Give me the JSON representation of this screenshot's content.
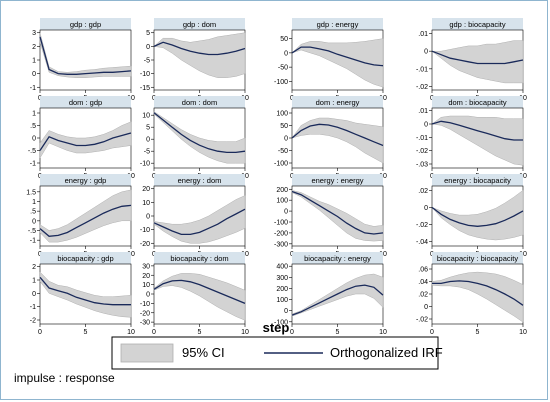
{
  "note": "impulse : response",
  "x_title": "step",
  "legend": {
    "ci_label": "95% CI",
    "irf_label": "Orthogonalized IRF"
  },
  "colors": {
    "panel_header": "#d7e3ec",
    "band": "#d3d3d3",
    "band_edge": "#b0b0b0",
    "line": "#1a2a5a",
    "frame": "#8fb5cf"
  },
  "x_ticks": [
    0,
    5,
    10
  ],
  "chart_data": [
    {
      "type": "area",
      "title": "gdp : gdp",
      "xlim": [
        0,
        10
      ],
      "ylim": [
        -1.2,
        3.2
      ],
      "yticks": [
        -1,
        0,
        1,
        2,
        3
      ],
      "ytick_labels": [
        "-1",
        "0",
        "1",
        "2",
        "3"
      ],
      "x": [
        0,
        1,
        2,
        3,
        4,
        5,
        6,
        7,
        8,
        9,
        10
      ],
      "irf": [
        2.7,
        0.3,
        0.0,
        -0.05,
        -0.05,
        0.0,
        0.05,
        0.1,
        0.1,
        0.15,
        0.2
      ],
      "lower": [
        2.3,
        0.1,
        -0.15,
        -0.25,
        -0.3,
        -0.3,
        -0.25,
        -0.2,
        -0.2,
        -0.2,
        -0.2
      ],
      "upper": [
        3.0,
        0.5,
        0.15,
        0.1,
        0.15,
        0.25,
        0.3,
        0.4,
        0.45,
        0.5,
        0.55
      ]
    },
    {
      "type": "area",
      "title": "gdp : dom",
      "xlim": [
        0,
        10
      ],
      "ylim": [
        -16,
        6
      ],
      "yticks": [
        -15,
        -10,
        -5,
        0,
        5
      ],
      "ytick_labels": [
        "-15",
        "-10",
        "-5",
        "0",
        "5"
      ],
      "x": [
        0,
        1,
        2,
        3,
        4,
        5,
        6,
        7,
        8,
        9,
        10
      ],
      "irf": [
        0,
        1.5,
        0.5,
        -0.8,
        -1.8,
        -2.5,
        -3,
        -3,
        -2.5,
        -1.8,
        -0.8
      ],
      "lower": [
        0,
        -0.5,
        -2.5,
        -5,
        -7,
        -9,
        -10.5,
        -11.5,
        -11.5,
        -11,
        -10
      ],
      "upper": [
        0,
        3,
        3,
        2,
        1.5,
        2,
        2.5,
        3.5,
        4,
        4.5,
        5
      ]
    },
    {
      "type": "area",
      "title": "gdp : energy",
      "xlim": [
        0,
        10
      ],
      "ylim": [
        -130,
        80
      ],
      "yticks": [
        -100,
        -50,
        0,
        50
      ],
      "ytick_labels": [
        "-100",
        "-50",
        "0",
        "50"
      ],
      "x": [
        0,
        1,
        2,
        3,
        4,
        5,
        6,
        7,
        8,
        9,
        10
      ],
      "irf": [
        0,
        20,
        20,
        14,
        7,
        -5,
        -15,
        -25,
        -35,
        -42,
        -45
      ],
      "lower": [
        0,
        10,
        0,
        -10,
        -25,
        -40,
        -55,
        -75,
        -95,
        -110,
        -120
      ],
      "upper": [
        0,
        30,
        40,
        40,
        35,
        35,
        35,
        37,
        40,
        45,
        50
      ]
    },
    {
      "type": "area",
      "title": "gdp : biocapacity",
      "xlim": [
        0,
        10
      ],
      "ylim": [
        -0.022,
        0.012
      ],
      "yticks": [
        -0.02,
        -0.01,
        0,
        0.01
      ],
      "ytick_labels": [
        "-.02",
        "-.01",
        "0",
        ".01"
      ],
      "x": [
        0,
        1,
        2,
        3,
        4,
        5,
        6,
        7,
        8,
        9,
        10
      ],
      "irf": [
        0,
        -0.002,
        -0.004,
        -0.005,
        -0.006,
        -0.007,
        -0.007,
        -0.007,
        -0.007,
        -0.006,
        -0.005
      ],
      "lower": [
        0,
        -0.004,
        -0.008,
        -0.011,
        -0.013,
        -0.015,
        -0.016,
        -0.017,
        -0.018,
        -0.018,
        -0.018
      ],
      "upper": [
        0,
        0,
        0.001,
        0.002,
        0.003,
        0.003,
        0.004,
        0.004,
        0.005,
        0.006,
        0.006
      ]
    },
    {
      "type": "area",
      "title": "dom : gdp",
      "xlim": [
        0,
        10
      ],
      "ylim": [
        -1.2,
        1.2
      ],
      "yticks": [
        -1,
        -0.5,
        0,
        0.5,
        1
      ],
      "ytick_labels": [
        "-1",
        "-.5",
        "0",
        ".5",
        "1"
      ],
      "x": [
        0,
        1,
        2,
        3,
        4,
        5,
        6,
        7,
        8,
        9,
        10
      ],
      "irf": [
        -0.5,
        0.05,
        -0.1,
        -0.2,
        -0.3,
        -0.3,
        -0.25,
        -0.15,
        0.0,
        0.1,
        0.2
      ],
      "lower": [
        -0.8,
        -0.2,
        -0.35,
        -0.5,
        -0.6,
        -0.6,
        -0.55,
        -0.5,
        -0.4,
        -0.35,
        -0.3
      ],
      "upper": [
        -0.2,
        0.3,
        0.15,
        0.05,
        0.0,
        0.0,
        0.05,
        0.15,
        0.3,
        0.5,
        0.65
      ]
    },
    {
      "type": "area",
      "title": "dom : dom",
      "xlim": [
        0,
        10
      ],
      "ylim": [
        -12,
        13
      ],
      "yticks": [
        -10,
        -5,
        0,
        5,
        10
      ],
      "ytick_labels": [
        "-10",
        "-5",
        "0",
        "5",
        "10"
      ],
      "x": [
        0,
        1,
        2,
        3,
        4,
        5,
        6,
        7,
        8,
        9,
        10
      ],
      "irf": [
        11,
        8,
        5,
        2,
        -0.5,
        -2.5,
        -4,
        -5,
        -5.5,
        -5.5,
        -5
      ],
      "lower": [
        10.5,
        7,
        3.5,
        0,
        -3,
        -5.5,
        -7.5,
        -9,
        -10,
        -10,
        -10
      ],
      "upper": [
        11.5,
        9,
        6.5,
        4,
        2,
        0.5,
        -0.5,
        -1,
        -1,
        -1,
        0.5
      ]
    },
    {
      "type": "area",
      "title": "dom : energy",
      "xlim": [
        0,
        10
      ],
      "ylim": [
        -120,
        120
      ],
      "yticks": [
        -100,
        -50,
        0,
        50,
        100
      ],
      "ytick_labels": [
        "-100",
        "-50",
        "0",
        "50",
        "100"
      ],
      "x": [
        0,
        1,
        2,
        3,
        4,
        5,
        6,
        7,
        8,
        9,
        10
      ],
      "irf": [
        0,
        30,
        48,
        55,
        52,
        43,
        30,
        15,
        0,
        -15,
        -30
      ],
      "lower": [
        0,
        10,
        15,
        15,
        10,
        0,
        -15,
        -35,
        -60,
        -80,
        -100
      ],
      "upper": [
        0,
        50,
        70,
        80,
        80,
        75,
        70,
        60,
        55,
        50,
        45
      ]
    },
    {
      "type": "area",
      "title": "dom : biocapacity",
      "xlim": [
        0,
        10
      ],
      "ylim": [
        -0.033,
        0.012
      ],
      "yticks": [
        -0.03,
        -0.02,
        -0.01,
        0,
        0.01
      ],
      "ytick_labels": [
        "-.03",
        "-.02",
        "-.01",
        "0",
        ".01"
      ],
      "x": [
        0,
        1,
        2,
        3,
        4,
        5,
        6,
        7,
        8,
        9,
        10
      ],
      "irf": [
        0,
        0.002,
        0.001,
        -0.001,
        -0.003,
        -0.005,
        -0.007,
        -0.009,
        -0.011,
        -0.012,
        -0.012
      ],
      "lower": [
        0,
        -0.001,
        -0.004,
        -0.008,
        -0.012,
        -0.016,
        -0.02,
        -0.024,
        -0.027,
        -0.03,
        -0.031
      ],
      "upper": [
        0,
        0.005,
        0.006,
        0.006,
        0.006,
        0.005,
        0.005,
        0.005,
        0.004,
        0.004,
        0.004
      ]
    },
    {
      "type": "area",
      "title": "energy : gdp",
      "xlim": [
        0,
        10
      ],
      "ylim": [
        -1.3,
        1.8
      ],
      "yticks": [
        -1,
        -0.5,
        0,
        0.5,
        1,
        1.5
      ],
      "ytick_labels": [
        "-1",
        "-.5",
        "0",
        ".5",
        "1",
        "1.5"
      ],
      "x": [
        0,
        1,
        2,
        3,
        4,
        5,
        6,
        7,
        8,
        9,
        10
      ],
      "irf": [
        -0.4,
        -0.8,
        -0.75,
        -0.6,
        -0.35,
        -0.1,
        0.15,
        0.4,
        0.6,
        0.75,
        0.8
      ],
      "lower": [
        -0.6,
        -1.1,
        -1.1,
        -1.0,
        -0.85,
        -0.65,
        -0.45,
        -0.25,
        -0.1,
        0.0,
        0.0
      ],
      "upper": [
        -0.2,
        -0.5,
        -0.4,
        -0.2,
        0.1,
        0.4,
        0.7,
        1.0,
        1.3,
        1.5,
        1.6
      ]
    },
    {
      "type": "area",
      "title": "energy : dom",
      "xlim": [
        0,
        10
      ],
      "ylim": [
        -22,
        22
      ],
      "yticks": [
        -20,
        -10,
        0,
        10,
        20
      ],
      "ytick_labels": [
        "-20",
        "-10",
        "0",
        "10",
        "20"
      ],
      "x": [
        0,
        1,
        2,
        3,
        4,
        5,
        6,
        7,
        8,
        9,
        10
      ],
      "irf": [
        -5,
        -8,
        -11,
        -13.5,
        -13.5,
        -12,
        -9,
        -6,
        -2,
        1.5,
        5
      ],
      "lower": [
        -6,
        -11,
        -15,
        -18.5,
        -20,
        -20,
        -19,
        -17,
        -14.5,
        -12,
        -9
      ],
      "upper": [
        -4,
        -5,
        -6,
        -6,
        -5,
        -3,
        0,
        4,
        8,
        12,
        15
      ]
    },
    {
      "type": "area",
      "title": "energy : energy",
      "xlim": [
        0,
        10
      ],
      "ylim": [
        -320,
        230
      ],
      "yticks": [
        -300,
        -200,
        -100,
        0,
        100,
        200
      ],
      "ytick_labels": [
        "-300",
        "-200",
        "-100",
        "0",
        "100",
        "200"
      ],
      "x": [
        0,
        1,
        2,
        3,
        4,
        5,
        6,
        7,
        8,
        9,
        10
      ],
      "irf": [
        180,
        150,
        100,
        50,
        0,
        -50,
        -110,
        -160,
        -200,
        -210,
        -200
      ],
      "lower": [
        170,
        130,
        70,
        10,
        -60,
        -130,
        -200,
        -250,
        -270,
        -275,
        -270
      ],
      "upper": [
        190,
        170,
        130,
        90,
        60,
        20,
        -20,
        -70,
        -120,
        -140,
        -130
      ]
    },
    {
      "type": "area",
      "title": "energy : biocapacity",
      "xlim": [
        0,
        10
      ],
      "ylim": [
        -0.045,
        0.025
      ],
      "yticks": [
        -0.04,
        -0.02,
        0,
        0.02
      ],
      "ytick_labels": [
        "-.04",
        "-.02",
        "0",
        ".02"
      ],
      "x": [
        0,
        1,
        2,
        3,
        4,
        5,
        6,
        7,
        8,
        9,
        10
      ],
      "irf": [
        0,
        -0.008,
        -0.014,
        -0.018,
        -0.021,
        -0.022,
        -0.021,
        -0.019,
        -0.015,
        -0.01,
        -0.004
      ],
      "lower": [
        0,
        -0.012,
        -0.02,
        -0.027,
        -0.032,
        -0.035,
        -0.037,
        -0.038,
        -0.037,
        -0.035,
        -0.032
      ],
      "upper": [
        0,
        -0.004,
        -0.007,
        -0.009,
        -0.009,
        -0.008,
        -0.005,
        -0.001,
        0.005,
        0.012,
        0.02
      ]
    },
    {
      "type": "area",
      "title": "biocapacity : gdp",
      "xlim": [
        0,
        10
      ],
      "ylim": [
        -2.3,
        2.2
      ],
      "yticks": [
        -2,
        -1,
        0,
        1,
        2
      ],
      "ytick_labels": [
        "-2",
        "-1",
        "0",
        "1",
        "2"
      ],
      "x": [
        0,
        1,
        2,
        3,
        4,
        5,
        6,
        7,
        8,
        9,
        10
      ],
      "irf": [
        1.2,
        0.4,
        0.2,
        0.0,
        -0.3,
        -0.5,
        -0.7,
        -0.8,
        -0.85,
        -0.85,
        -0.85
      ],
      "lower": [
        0.9,
        0.0,
        -0.25,
        -0.5,
        -0.8,
        -1.05,
        -1.3,
        -1.5,
        -1.65,
        -1.75,
        -1.8
      ],
      "upper": [
        1.6,
        0.9,
        0.6,
        0.5,
        0.25,
        0.05,
        -0.15,
        -0.25,
        -0.25,
        -0.2,
        -0.15
      ]
    },
    {
      "type": "area",
      "title": "biocapacity : dom",
      "xlim": [
        0,
        10
      ],
      "ylim": [
        -32,
        32
      ],
      "yticks": [
        -30,
        -20,
        -10,
        0,
        10,
        20,
        30
      ],
      "ytick_labels": [
        "-30",
        "-20",
        "-10",
        "0",
        "10",
        "20",
        "30"
      ],
      "x": [
        0,
        1,
        2,
        3,
        4,
        5,
        6,
        7,
        8,
        9,
        10
      ],
      "irf": [
        5,
        11,
        14,
        14.5,
        13,
        10,
        6,
        2,
        -2,
        -6,
        -10
      ],
      "lower": [
        4,
        8,
        9,
        7,
        3,
        -2,
        -8,
        -14,
        -19,
        -24,
        -28
      ],
      "upper": [
        6,
        14,
        19,
        22,
        22,
        21,
        18,
        15,
        12,
        8,
        4
      ]
    },
    {
      "type": "area",
      "title": "biocapacity : energy",
      "xlim": [
        0,
        10
      ],
      "ylim": [
        -120,
        420
      ],
      "yticks": [
        -100,
        0,
        100,
        200,
        300,
        400
      ],
      "ytick_labels": [
        "-100",
        "0",
        "100",
        "200",
        "300",
        "400"
      ],
      "x": [
        0,
        1,
        2,
        3,
        4,
        5,
        6,
        7,
        8,
        9,
        10
      ],
      "irf": [
        -40,
        -10,
        30,
        70,
        110,
        150,
        190,
        220,
        230,
        210,
        140
      ],
      "lower": [
        -50,
        -20,
        10,
        40,
        70,
        100,
        130,
        150,
        150,
        110,
        30
      ],
      "upper": [
        -30,
        0,
        50,
        100,
        150,
        200,
        250,
        290,
        320,
        330,
        300
      ]
    },
    {
      "type": "area",
      "title": "biocapacity : biocapacity",
      "xlim": [
        0,
        10
      ],
      "ylim": [
        -0.028,
        0.068
      ],
      "yticks": [
        -0.02,
        0,
        0.02,
        0.04,
        0.06
      ],
      "ytick_labels": [
        "-.02",
        "0",
        ".02",
        ".04",
        ".06"
      ],
      "x": [
        0,
        1,
        2,
        3,
        4,
        5,
        6,
        7,
        8,
        9,
        10
      ],
      "irf": [
        0.037,
        0.037,
        0.04,
        0.041,
        0.04,
        0.037,
        0.033,
        0.027,
        0.02,
        0.012,
        0.002
      ],
      "lower": [
        0.034,
        0.033,
        0.033,
        0.031,
        0.027,
        0.02,
        0.012,
        0.003,
        -0.006,
        -0.015,
        -0.025
      ],
      "upper": [
        0.04,
        0.042,
        0.047,
        0.051,
        0.054,
        0.055,
        0.054,
        0.052,
        0.048,
        0.042,
        0.035
      ]
    }
  ]
}
